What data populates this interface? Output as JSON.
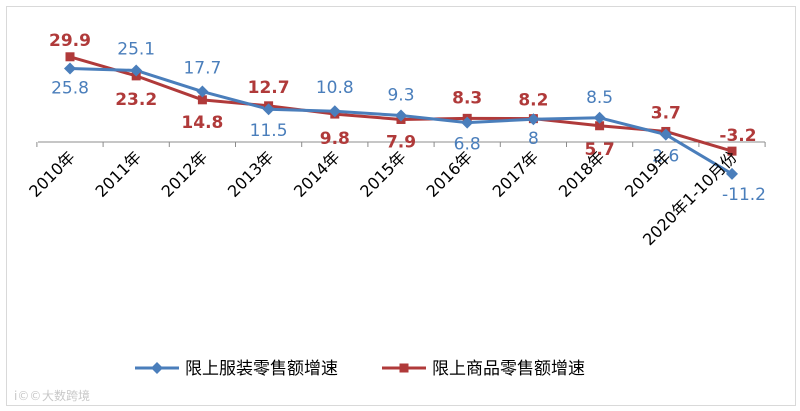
{
  "chart_data": {
    "type": "line",
    "categories": [
      "2010年",
      "2011年",
      "2012年",
      "2013年",
      "2014年",
      "2015年",
      "2016年",
      "2017年",
      "2018年",
      "2019年",
      "2020年1-10月份"
    ],
    "series": [
      {
        "name": "限上服装零售额增速",
        "values": [
          25.8,
          25.1,
          17.7,
          11.5,
          10.8,
          9.3,
          6.8,
          8,
          8.5,
          2.6,
          -11.2
        ],
        "color": "#4a7ebb",
        "marker": "diamond"
      },
      {
        "name": "限上商品零售额增速",
        "values": [
          29.9,
          23.2,
          14.8,
          12.7,
          9.8,
          7.9,
          8.3,
          8.2,
          5.7,
          3.7,
          -3.2
        ],
        "color": "#b03a3a",
        "marker": "square"
      }
    ],
    "ylim": [
      -15,
      35
    ],
    "grid": false,
    "legend_position": "bottom"
  },
  "watermark": "大数跨境",
  "watermark_mark": "i©©"
}
